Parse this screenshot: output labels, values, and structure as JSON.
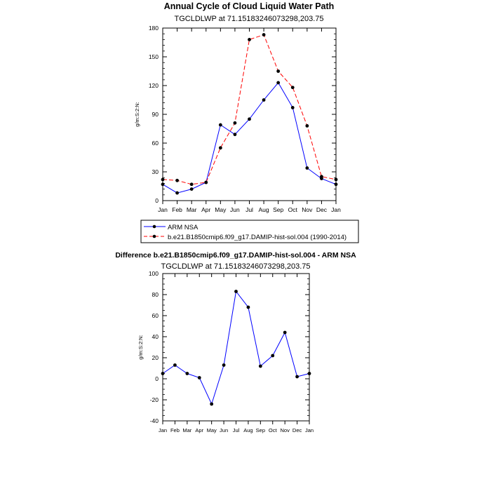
{
  "colors": {
    "obs": "#0000ff",
    "model": "#ff0000",
    "marker": "#000000",
    "axis": "#000000"
  },
  "chart_data": [
    {
      "type": "line",
      "title": "Annual Cycle of Cloud Liquid Water Path",
      "subtitle": "TGCLDLWP at 71.15183246073298,203.75",
      "ylabel": "g/m:S:2:N:",
      "categories": [
        "Jan",
        "Feb",
        "Mar",
        "Apr",
        "May",
        "Jun",
        "Jul",
        "Aug",
        "Sep",
        "Oct",
        "Nov",
        "Dec",
        "Jan"
      ],
      "ylim": [
        0,
        180
      ],
      "yticks": [
        0,
        30,
        60,
        90,
        120,
        150,
        180
      ],
      "series": [
        {
          "name": "ARM NSA",
          "style": "solid",
          "color": "#0000ff",
          "values": [
            17,
            8,
            12,
            19,
            79,
            69,
            85,
            105,
            123,
            97,
            34,
            23,
            17
          ]
        },
        {
          "name": "b.e21.B1850cmip6.f09_g17.DAMIP-hist-sol.004 (1990-2014)",
          "style": "dashed",
          "color": "#ff0000",
          "values": [
            22,
            21,
            17,
            19,
            55,
            81,
            168,
            173,
            135,
            118,
            78,
            25,
            22
          ]
        }
      ]
    },
    {
      "type": "line",
      "title": "Difference b.e21.B1850cmip6.f09_g17.DAMIP-hist-sol.004 - ARM NSA",
      "subtitle": "TGCLDLWP at 71.15183246073298,203.75",
      "ylabel": "g/m:S:2:N:",
      "categories": [
        "Jan",
        "Feb",
        "Mar",
        "Apr",
        "May",
        "Jun",
        "Jul",
        "Aug",
        "Sep",
        "Oct",
        "Nov",
        "Dec",
        "Jan"
      ],
      "ylim": [
        -40,
        100
      ],
      "yticks": [
        -40,
        -20,
        0,
        20,
        40,
        60,
        80,
        100
      ],
      "series": [
        {
          "name": "Difference",
          "style": "solid",
          "color": "#0000ff",
          "values": [
            5,
            13,
            5,
            1,
            -24,
            13,
            83,
            68,
            12,
            22,
            44,
            2,
            5
          ]
        }
      ]
    }
  ]
}
